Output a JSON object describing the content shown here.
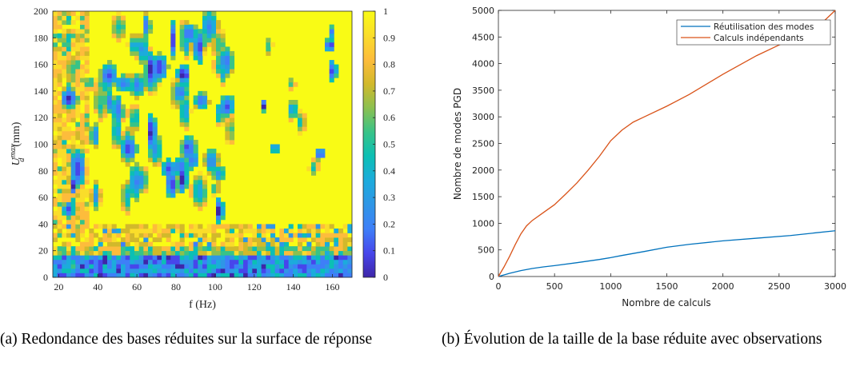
{
  "chart_data": [
    {
      "type": "heatmap",
      "xlabel": "f (Hz)",
      "ylabel_main": "U",
      "ylabel_sup": "max",
      "ylabel_sub": "d",
      "ylabel_unit": "(mm)",
      "xlim": [
        17,
        170
      ],
      "ylim": [
        0,
        200
      ],
      "xticks": [
        20,
        40,
        60,
        80,
        100,
        120,
        140,
        160
      ],
      "yticks": [
        0,
        20,
        40,
        60,
        80,
        100,
        120,
        140,
        160,
        180,
        200
      ],
      "clim": [
        0,
        1
      ],
      "colorbar_ticks": [
        0,
        0.1,
        0.2,
        0.3,
        0.4,
        0.5,
        0.6,
        0.7,
        0.8,
        0.9,
        1
      ],
      "colormap": [
        "#3e26a8",
        "#4746eb",
        "#3e7ff8",
        "#2f96e6",
        "#1cabdc",
        "#0cbfb4",
        "#38c388",
        "#8bc050",
        "#d2b92b",
        "#fdbc3c",
        "#fadd2a",
        "#f9fb15"
      ],
      "caption": "(a) Redondance des bases réduites sur la surface de réponse"
    },
    {
      "type": "line",
      "xlabel": "Nombre de calculs",
      "ylabel": "Nombre de modes PGD",
      "xlim": [
        0,
        3000
      ],
      "ylim": [
        0,
        5000
      ],
      "xticks": [
        0,
        500,
        1000,
        1500,
        2000,
        2500,
        3000
      ],
      "yticks": [
        0,
        500,
        1000,
        1500,
        2000,
        2500,
        3000,
        3500,
        4000,
        4500,
        5000
      ],
      "legend_position": "top-right",
      "series": [
        {
          "name": "Réutilisation des modes",
          "color": "#0072bd",
          "x": [
            0,
            50,
            100,
            200,
            300,
            400,
            500,
            700,
            900,
            1000,
            1100,
            1300,
            1500,
            1700,
            2000,
            2300,
            2600,
            2800,
            3000
          ],
          "y": [
            0,
            30,
            60,
            110,
            150,
            180,
            205,
            260,
            320,
            355,
            395,
            470,
            550,
            605,
            670,
            720,
            770,
            815,
            860
          ]
        },
        {
          "name": "Calculs indépendants",
          "color": "#d95319",
          "x": [
            0,
            50,
            100,
            150,
            200,
            250,
            300,
            400,
            500,
            600,
            700,
            800,
            900,
            1000,
            1100,
            1200,
            1300,
            1500,
            1700,
            2000,
            2300,
            2500,
            2700,
            2900,
            3000
          ],
          "y": [
            0,
            180,
            380,
            600,
            800,
            950,
            1050,
            1200,
            1350,
            1550,
            1760,
            2000,
            2260,
            2550,
            2750,
            2900,
            3000,
            3200,
            3420,
            3800,
            4150,
            4350,
            4550,
            4800,
            5000
          ]
        }
      ],
      "caption": "(b) Évolution de la taille de la base réduite avec observations"
    }
  ]
}
